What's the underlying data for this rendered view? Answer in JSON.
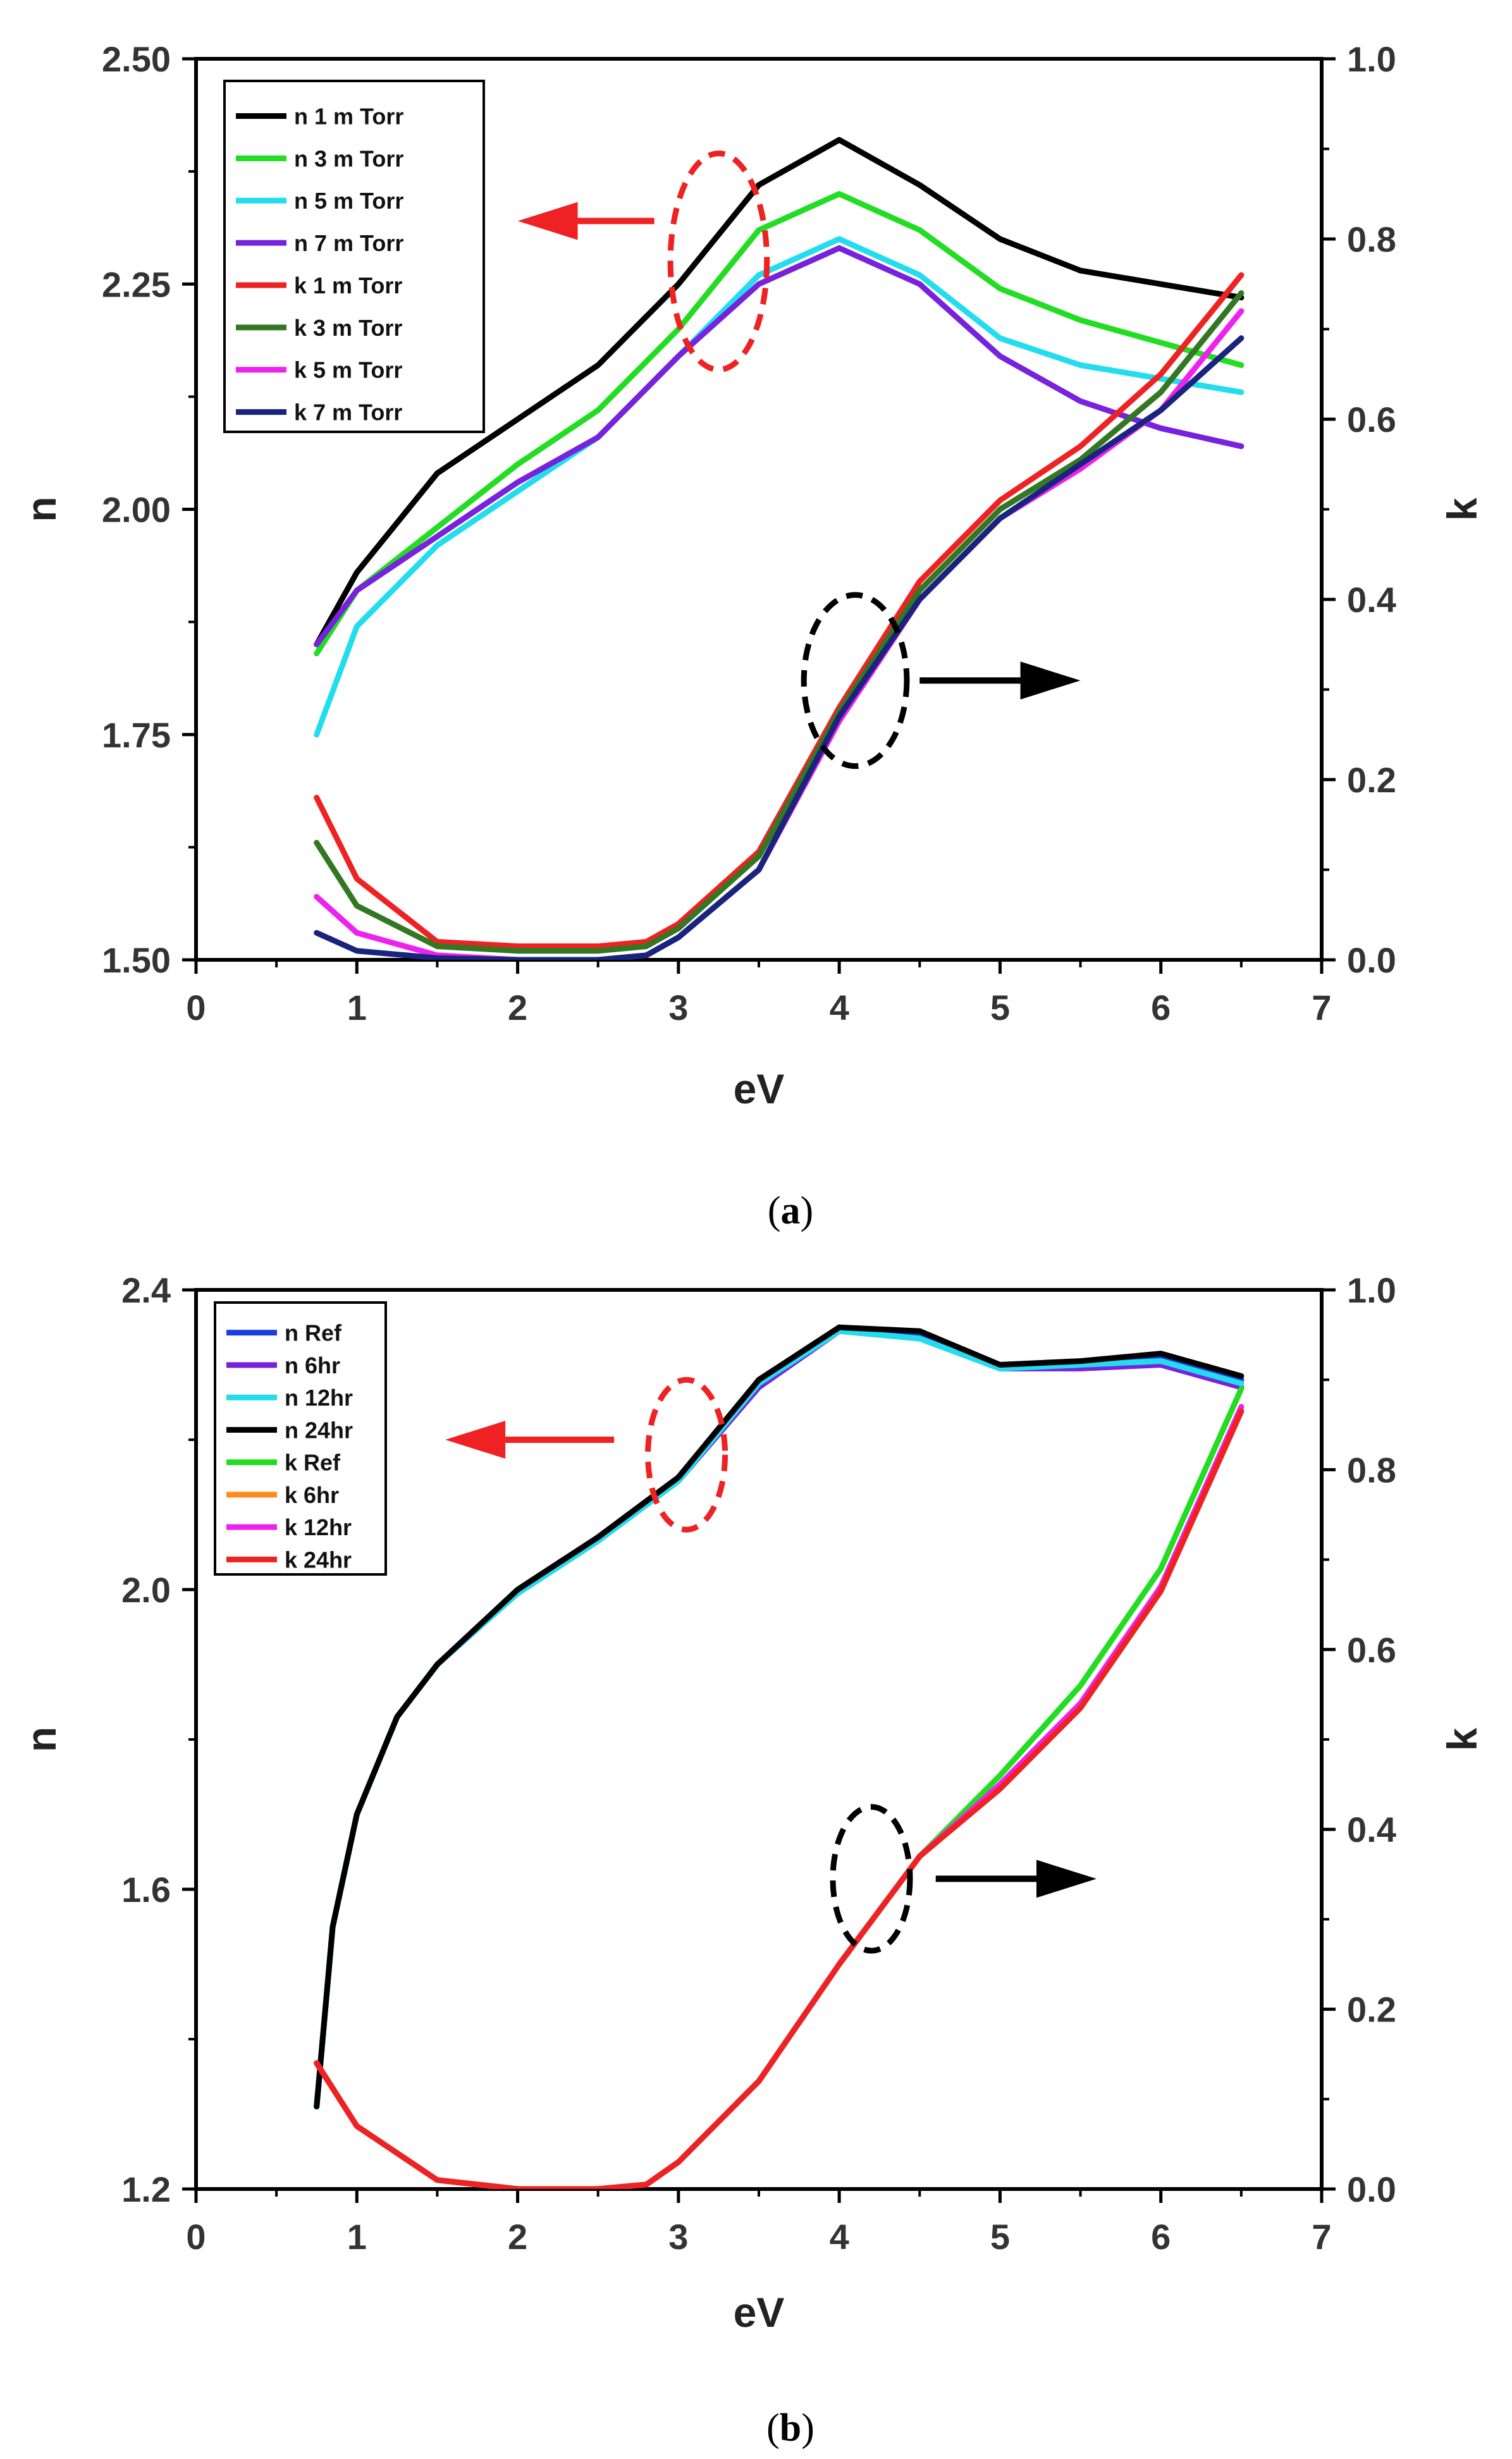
{
  "chart_data": [
    {
      "type": "line",
      "panel_label": "a",
      "caption_open": "(",
      "caption_close": ")",
      "xlabel": "eV",
      "ylabel": "n",
      "y2label": "k",
      "xlim": [
        0,
        7
      ],
      "ylim": [
        1.5,
        2.5
      ],
      "y2lim": [
        0,
        1
      ],
      "x_ticks": [
        "0",
        "1",
        "2",
        "3",
        "4",
        "5",
        "6",
        "7"
      ],
      "y_ticks": [
        "1.50",
        "1.75",
        "2.00",
        "2.25",
        "2.50"
      ],
      "y2_ticks": [
        "0.0",
        "0.2",
        "0.4",
        "0.6",
        "0.8",
        "1.0"
      ],
      "series": [
        {
          "name": "n 1 m Torr",
          "axis": "left",
          "color": "#000000",
          "x": [
            0.75,
            1.0,
            1.5,
            2.0,
            2.5,
            3.0,
            3.5,
            4.0,
            4.5,
            5.0,
            5.5,
            6.0,
            6.5
          ],
          "y": [
            1.85,
            1.93,
            2.04,
            2.1,
            2.16,
            2.25,
            2.36,
            2.41,
            2.36,
            2.3,
            2.265,
            2.25,
            2.235
          ]
        },
        {
          "name": "n 3 m Torr",
          "axis": "left",
          "color": "#22dd22",
          "x": [
            0.75,
            1.0,
            1.5,
            2.0,
            2.5,
            3.0,
            3.5,
            4.0,
            4.5,
            5.0,
            5.5,
            6.0,
            6.5
          ],
          "y": [
            1.84,
            1.91,
            1.98,
            2.05,
            2.11,
            2.2,
            2.31,
            2.35,
            2.31,
            2.245,
            2.21,
            2.185,
            2.16
          ]
        },
        {
          "name": "n 5 m Torr",
          "axis": "left",
          "color": "#22ddee",
          "x": [
            0.75,
            1.0,
            1.5,
            2.0,
            2.5,
            3.0,
            3.5,
            4.0,
            4.5,
            5.0,
            5.5,
            6.0,
            6.5
          ],
          "y": [
            1.75,
            1.87,
            1.96,
            2.02,
            2.08,
            2.17,
            2.26,
            2.3,
            2.26,
            2.19,
            2.16,
            2.145,
            2.13
          ]
        },
        {
          "name": "n 7 m Torr",
          "axis": "left",
          "color": "#7722dd",
          "x": [
            0.75,
            1.0,
            1.5,
            2.0,
            2.5,
            3.0,
            3.5,
            4.0,
            4.5,
            5.0,
            5.5,
            6.0,
            6.5
          ],
          "y": [
            1.85,
            1.91,
            1.97,
            2.03,
            2.08,
            2.17,
            2.25,
            2.29,
            2.25,
            2.17,
            2.12,
            2.09,
            2.07
          ]
        },
        {
          "name": "k 1 m Torr",
          "axis": "right",
          "color": "#ee2222",
          "x": [
            0.75,
            1.0,
            1.5,
            2.0,
            2.5,
            2.8,
            3.0,
            3.5,
            4.0,
            4.5,
            5.0,
            5.5,
            6.0,
            6.5
          ],
          "y": [
            0.18,
            0.09,
            0.02,
            0.015,
            0.015,
            0.02,
            0.04,
            0.12,
            0.28,
            0.42,
            0.51,
            0.57,
            0.65,
            0.76
          ]
        },
        {
          "name": "k 3 m Torr",
          "axis": "right",
          "color": "#337722",
          "x": [
            0.75,
            1.0,
            1.5,
            2.0,
            2.5,
            2.8,
            3.0,
            3.5,
            4.0,
            4.5,
            5.0,
            5.5,
            6.0,
            6.5
          ],
          "y": [
            0.13,
            0.06,
            0.015,
            0.01,
            0.01,
            0.015,
            0.035,
            0.115,
            0.275,
            0.41,
            0.5,
            0.555,
            0.63,
            0.74
          ]
        },
        {
          "name": "k 5 m Torr",
          "axis": "right",
          "color": "#ee22ee",
          "x": [
            0.75,
            1.0,
            1.5,
            2.0,
            2.5,
            2.8,
            3.0,
            3.5,
            4.0,
            4.5,
            5.0,
            5.5,
            6.0,
            6.5
          ],
          "y": [
            0.07,
            0.03,
            0.005,
            0.0,
            0.0,
            0.005,
            0.025,
            0.1,
            0.265,
            0.4,
            0.49,
            0.545,
            0.61,
            0.72
          ]
        },
        {
          "name": "k 7 m Torr",
          "axis": "right",
          "color": "#1a237e",
          "x": [
            0.75,
            1.0,
            1.5,
            2.0,
            2.5,
            2.8,
            3.0,
            3.5,
            4.0,
            4.5,
            5.0,
            5.5,
            6.0,
            6.5
          ],
          "y": [
            0.03,
            0.01,
            0.002,
            0.0,
            0.0,
            0.005,
            0.025,
            0.1,
            0.27,
            0.4,
            0.49,
            0.55,
            0.61,
            0.69
          ]
        }
      ],
      "annotations": [
        {
          "type": "dashed-ellipse",
          "color": "#ee2222",
          "cx": 3.25,
          "cy": 2.275,
          "axis": "left",
          "rx_units": 0.3,
          "ry_units": 0.12
        },
        {
          "type": "arrow",
          "color": "#ee2222",
          "direction": "left",
          "x_from": 2.85,
          "x_to": 2.0,
          "y": 2.32,
          "axis": "left"
        },
        {
          "type": "dashed-ellipse",
          "color": "#000000",
          "cx": 4.1,
          "cy": 0.31,
          "axis": "right",
          "rx_units": 0.32,
          "ry_units": 0.095
        },
        {
          "type": "arrow",
          "color": "#000000",
          "direction": "right",
          "x_from": 4.5,
          "x_to": 5.5,
          "y": 0.31,
          "axis": "right"
        }
      ]
    },
    {
      "type": "line",
      "panel_label": "b",
      "caption_open": "(",
      "caption_close": ")",
      "xlabel": "eV",
      "ylabel": "n",
      "y2label": "k",
      "xlim": [
        0,
        7
      ],
      "ylim": [
        1.2,
        2.4
      ],
      "y2lim": [
        0,
        1
      ],
      "x_ticks": [
        "0",
        "1",
        "2",
        "3",
        "4",
        "5",
        "6",
        "7"
      ],
      "y_ticks": [
        "1.2",
        "1.6",
        "2.0",
        "2.4"
      ],
      "y2_ticks": [
        "0.0",
        "0.2",
        "0.4",
        "0.6",
        "0.8",
        "1.0"
      ],
      "series": [
        {
          "name": "n Ref",
          "axis": "left",
          "color": "#1a3fe0",
          "x": [
            0.75,
            0.85,
            1.0,
            1.25,
            1.5,
            2.0,
            2.5,
            3.0,
            3.5,
            4.0,
            4.5,
            5.0,
            5.5,
            6.0,
            6.5
          ],
          "y": [
            1.31,
            1.55,
            1.7,
            1.83,
            1.9,
            2.0,
            2.07,
            2.15,
            2.28,
            2.35,
            2.34,
            2.3,
            2.305,
            2.31,
            2.28
          ]
        },
        {
          "name": "n 6hr",
          "axis": "left",
          "color": "#7722dd",
          "x": [
            0.75,
            0.85,
            1.0,
            1.25,
            1.5,
            2.0,
            2.5,
            3.0,
            3.5,
            4.0,
            4.5,
            5.0,
            5.5,
            6.0,
            6.5
          ],
          "y": [
            1.31,
            1.55,
            1.7,
            1.83,
            1.9,
            1.995,
            2.065,
            2.145,
            2.27,
            2.345,
            2.335,
            2.295,
            2.295,
            2.3,
            2.27
          ]
        },
        {
          "name": "n 12hr",
          "axis": "left",
          "color": "#22ddee",
          "x": [
            0.75,
            0.85,
            1.0,
            1.25,
            1.5,
            2.0,
            2.5,
            3.0,
            3.5,
            4.0,
            4.5,
            5.0,
            5.5,
            6.0,
            6.5
          ],
          "y": [
            1.31,
            1.55,
            1.7,
            1.83,
            1.9,
            1.995,
            2.065,
            2.145,
            2.275,
            2.345,
            2.335,
            2.295,
            2.3,
            2.305,
            2.275
          ]
        },
        {
          "name": "n 24hr",
          "axis": "left",
          "color": "#000000",
          "x": [
            0.75,
            0.85,
            1.0,
            1.25,
            1.5,
            2.0,
            2.5,
            3.0,
            3.5,
            4.0,
            4.5,
            5.0,
            5.5,
            6.0,
            6.5
          ],
          "y": [
            1.31,
            1.55,
            1.7,
            1.83,
            1.9,
            2.0,
            2.07,
            2.15,
            2.28,
            2.35,
            2.345,
            2.3,
            2.305,
            2.315,
            2.285
          ]
        },
        {
          "name": "k Ref",
          "axis": "right",
          "color": "#22dd22",
          "x": [
            0.75,
            1.0,
            1.5,
            2.0,
            2.5,
            2.8,
            3.0,
            3.5,
            4.0,
            4.5,
            5.0,
            5.5,
            6.0,
            6.5
          ],
          "y": [
            0.14,
            0.07,
            0.01,
            0.0,
            0.0,
            0.005,
            0.03,
            0.12,
            0.25,
            0.37,
            0.46,
            0.56,
            0.69,
            0.89
          ]
        },
        {
          "name": "k 6hr",
          "axis": "right",
          "color": "#ff8c1a",
          "x": [
            0.75,
            1.0,
            1.5,
            2.0,
            2.5,
            2.8,
            3.0,
            3.5,
            4.0,
            4.5,
            5.0,
            5.5,
            6.0,
            6.5
          ],
          "y": [
            0.14,
            0.07,
            0.01,
            0.0,
            0.0,
            0.005,
            0.03,
            0.12,
            0.25,
            0.37,
            0.45,
            0.54,
            0.67,
            0.87
          ]
        },
        {
          "name": "k 12hr",
          "axis": "right",
          "color": "#ee22ee",
          "x": [
            0.75,
            1.0,
            1.5,
            2.0,
            2.5,
            2.8,
            3.0,
            3.5,
            4.0,
            4.5,
            5.0,
            5.5,
            6.0,
            6.5
          ],
          "y": [
            0.14,
            0.07,
            0.01,
            0.0,
            0.0,
            0.005,
            0.03,
            0.12,
            0.25,
            0.37,
            0.45,
            0.54,
            0.67,
            0.87
          ]
        },
        {
          "name": "k 24hr",
          "axis": "right",
          "color": "#ee2222",
          "x": [
            0.75,
            1.0,
            1.5,
            2.0,
            2.5,
            2.8,
            3.0,
            3.5,
            4.0,
            4.5,
            5.0,
            5.5,
            6.0,
            6.5
          ],
          "y": [
            0.14,
            0.07,
            0.01,
            0.0,
            0.0,
            0.005,
            0.03,
            0.12,
            0.25,
            0.37,
            0.445,
            0.535,
            0.665,
            0.865
          ]
        }
      ],
      "annotations": [
        {
          "type": "dashed-ellipse",
          "color": "#ee2222",
          "cx": 3.05,
          "cy": 2.18,
          "axis": "left",
          "rx_units": 0.24,
          "ry_units": 0.1
        },
        {
          "type": "arrow",
          "color": "#ee2222",
          "direction": "left",
          "x_from": 2.6,
          "x_to": 1.55,
          "y": 2.2,
          "axis": "left"
        },
        {
          "type": "dashed-ellipse",
          "color": "#000000",
          "cx": 4.2,
          "cy": 0.345,
          "axis": "right",
          "rx_units": 0.24,
          "ry_units": 0.08
        },
        {
          "type": "arrow",
          "color": "#000000",
          "direction": "right",
          "x_from": 4.6,
          "x_to": 5.6,
          "y": 0.345,
          "axis": "right"
        }
      ]
    }
  ]
}
